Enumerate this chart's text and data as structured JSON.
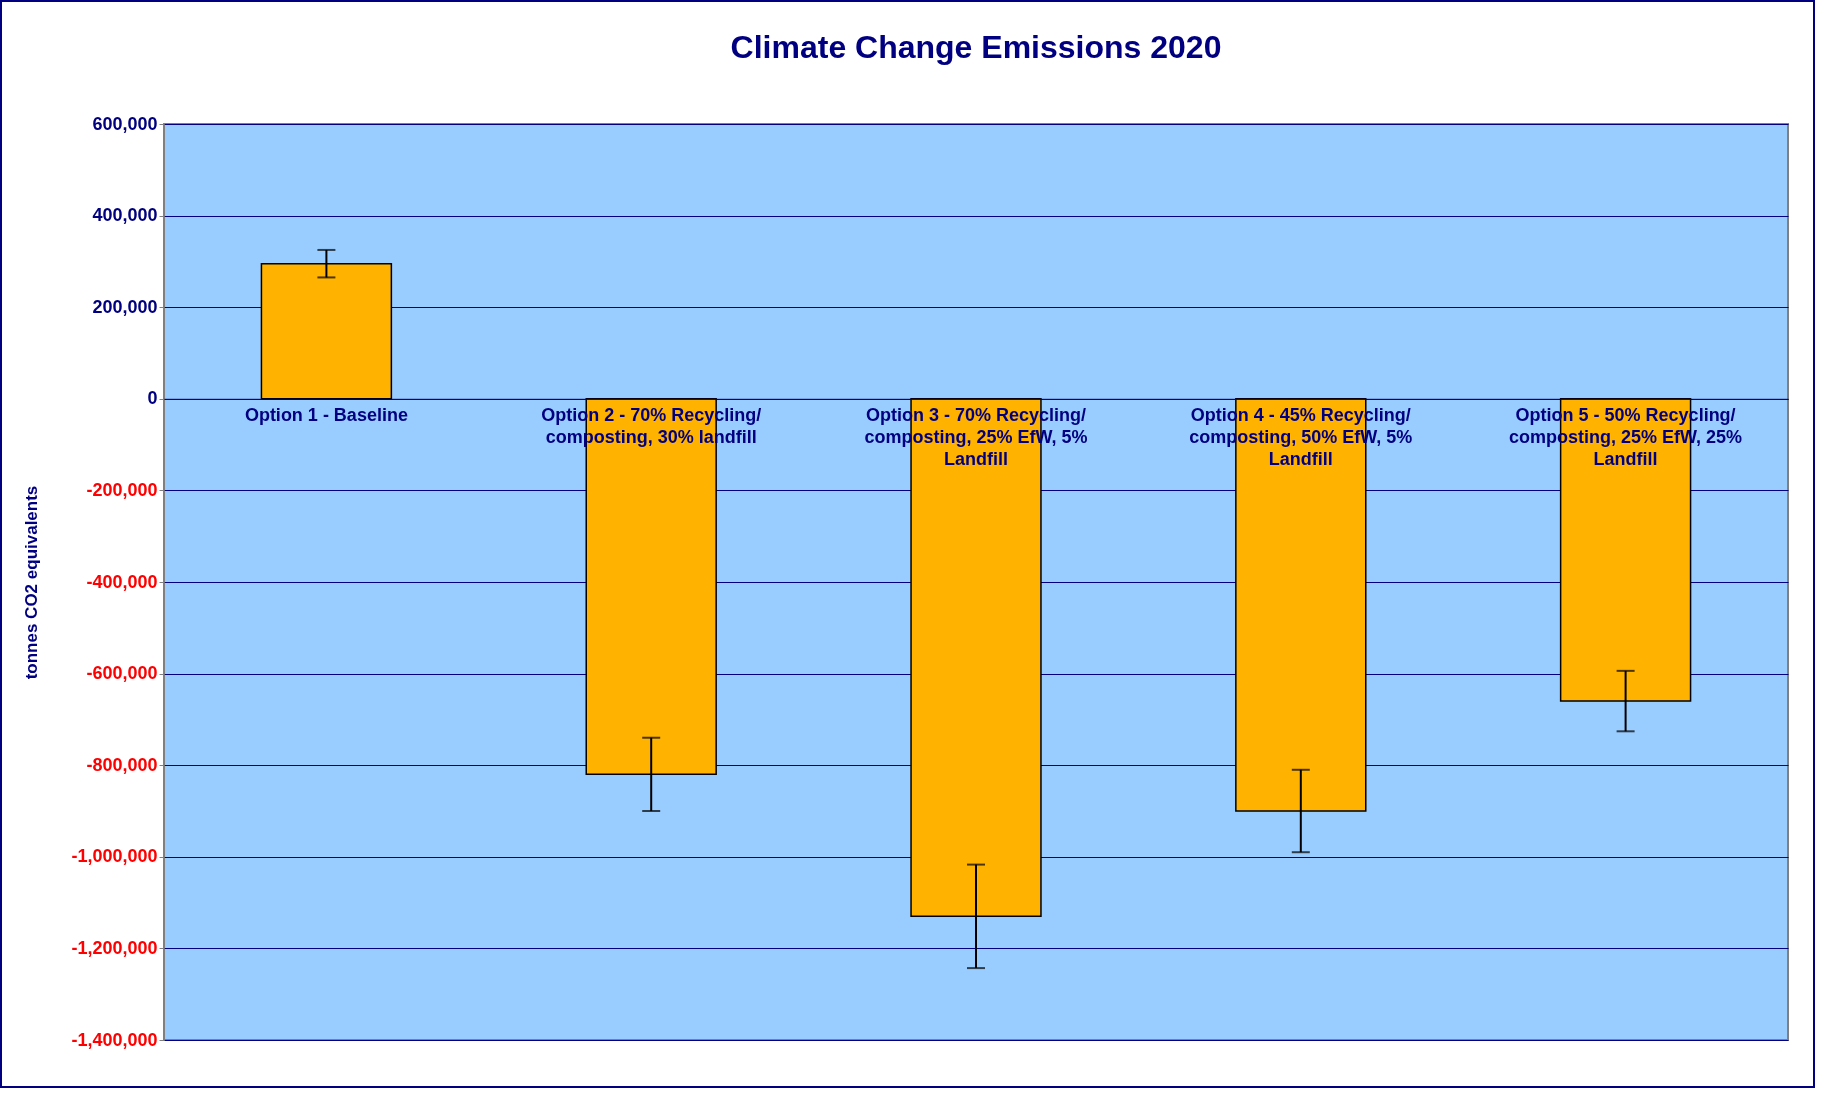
{
  "chart_data": {
    "type": "bar",
    "title": "Climate Change Emissions 2020",
    "ylabel": "tonnes CO2 equivalents",
    "categories": [
      "Option 1 - Baseline",
      "Option 2  - 70% Recycling/ composting, 30% landfill",
      "Option 3 - 70% Recycling/ composting, 25% EfW, 5% Landfill",
      "Option 4 - 45% Recycling/ composting, 50% EfW, 5% Landfill",
      "Option 5 - 50% Recycling/ composting, 25% EfW, 25% Landfill"
    ],
    "values": [
      295000,
      -820000,
      -1130000,
      -900000,
      -660000
    ],
    "errors": [
      30000,
      80000,
      113000,
      90000,
      66000
    ],
    "color": "#ffb300",
    "ylim": [
      -1400000,
      600000
    ],
    "yticks": [
      {
        "value": -1400000,
        "label": "-1,400,000"
      },
      {
        "value": -1200000,
        "label": "-1,200,000"
      },
      {
        "value": -1000000,
        "label": "-1,000,000"
      },
      {
        "value": -800000,
        "label": "-800,000"
      },
      {
        "value": -600000,
        "label": "-600,000"
      },
      {
        "value": -400000,
        "label": "-400,000"
      },
      {
        "value": -200000,
        "label": "-200,000"
      },
      0,
      {
        "value": 200000,
        "label": "200,000"
      },
      {
        "value": 400000,
        "label": "400,000"
      },
      {
        "value": 600000,
        "label": "600,000"
      }
    ],
    "grid": "y"
  }
}
